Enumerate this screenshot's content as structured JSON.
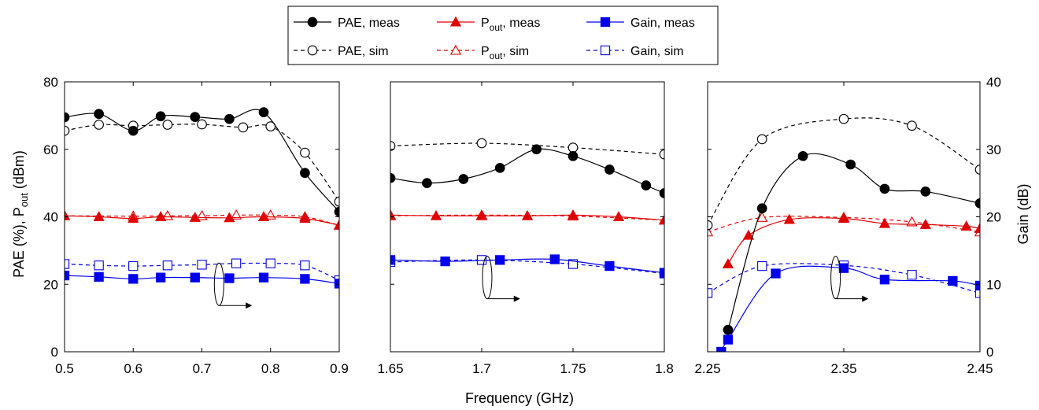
{
  "chart_data": {
    "type": "line",
    "xlabel": "Frequency (GHz)",
    "ylabel_left": {
      "main": "PAE (%), P",
      "sub": "out",
      "unit": " (dBm)"
    },
    "ylabel_right": "Gain (dB)",
    "ylim_left": [
      0,
      80
    ],
    "ylim_right": [
      0,
      40
    ],
    "yticks_left": [
      "0",
      "20",
      "40",
      "60",
      "80"
    ],
    "yticks_right": [
      "0",
      "10",
      "20",
      "30",
      "40"
    ],
    "grid": false,
    "legend_position": "top-center",
    "legend": [
      {
        "label": "PAE, meas",
        "color": "#000000",
        "marker": "filled-circle",
        "dash": "solid"
      },
      {
        "label": "P",
        "sub": "out",
        "label_tail": ", meas",
        "color": "#e00000",
        "marker": "filled-triangle",
        "dash": "solid"
      },
      {
        "label": "Gain, meas",
        "color": "#0000ee",
        "marker": "filled-square",
        "dash": "solid"
      },
      {
        "label": "PAE, sim",
        "color": "#000000",
        "marker": "open-circle",
        "dash": "dashed"
      },
      {
        "label": "P",
        "sub": "out",
        "label_tail": ", sim",
        "color": "#e00000",
        "marker": "open-triangle",
        "dash": "dashed"
      },
      {
        "label": "Gain, sim",
        "color": "#0000ee",
        "marker": "open-square",
        "dash": "dashed"
      }
    ],
    "panels": [
      {
        "xlim": [
          0.5,
          0.9
        ],
        "xticks": [
          0.5,
          0.6,
          0.7,
          0.8,
          0.9
        ],
        "xtick_labels": [
          "0.5",
          "0.6",
          "0.7",
          "0.8",
          "0.9"
        ],
        "series": {
          "pae_meas": {
            "x": [
              0.5,
              0.55,
              0.6,
              0.64,
              0.69,
              0.74,
              0.79,
              0.85,
              0.9
            ],
            "y": [
              69.5,
              70.5,
              65.5,
              69.8,
              69.6,
              69,
              71,
              53,
              41.5
            ]
          },
          "pae_sim": {
            "x": [
              0.5,
              0.55,
              0.6,
              0.65,
              0.7,
              0.76,
              0.8,
              0.85,
              0.9
            ],
            "y": [
              65.5,
              67.3,
              67,
              67.3,
              67.4,
              66.5,
              66.8,
              59,
              44.5
            ]
          },
          "pout_meas": {
            "x": [
              0.5,
              0.55,
              0.6,
              0.64,
              0.69,
              0.74,
              0.79,
              0.85,
              0.9
            ],
            "y": [
              40.3,
              40,
              39.5,
              40,
              39.8,
              39.7,
              40,
              39.5,
              37.5
            ]
          },
          "pout_sim": {
            "x": [
              0.5,
              0.6,
              0.65,
              0.7,
              0.75,
              0.8,
              0.85,
              0.9
            ],
            "y": [
              40.3,
              40.2,
              40.3,
              40.3,
              40.5,
              40.5,
              40,
              37.5
            ]
          },
          "gain_meas": {
            "x": [
              0.5,
              0.55,
              0.6,
              0.64,
              0.69,
              0.74,
              0.79,
              0.85,
              0.9
            ],
            "y": [
              11.3,
              11.1,
              10.8,
              11,
              11,
              10.9,
              11,
              10.8,
              10.1
            ]
          },
          "gain_sim": {
            "x": [
              0.5,
              0.55,
              0.6,
              0.65,
              0.7,
              0.75,
              0.8,
              0.85,
              0.9
            ],
            "y": [
              13,
              12.8,
              12.7,
              12.8,
              12.9,
              13.1,
              13.1,
              12.8,
              10.6
            ]
          }
        },
        "annotation": {
          "x": 0.725,
          "y_left": 20,
          "dx": 0.04
        }
      },
      {
        "xlim": [
          1.65,
          1.8
        ],
        "xticks": [
          1.65,
          1.7,
          1.75,
          1.8
        ],
        "xtick_labels": [
          "1.65",
          "1.7",
          "1.75",
          "1.8"
        ],
        "series": {
          "pae_meas": {
            "x": [
              1.65,
              1.67,
              1.69,
              1.71,
              1.73,
              1.75,
              1.77,
              1.79,
              1.8
            ],
            "y": [
              51.5,
              50,
              51.2,
              54.5,
              60,
              58,
              54,
              49.3,
              47
            ]
          },
          "pae_sim": {
            "x": [
              1.65,
              1.7,
              1.75,
              1.8
            ],
            "y": [
              61,
              61.8,
              60.5,
              58.5
            ]
          },
          "pout_meas": {
            "x": [
              1.65,
              1.675,
              1.7,
              1.725,
              1.75,
              1.775,
              1.8
            ],
            "y": [
              40.5,
              40.3,
              40.3,
              40.3,
              40.5,
              40,
              39
            ]
          },
          "pout_sim": {
            "x": [
              1.65,
              1.7,
              1.75,
              1.8
            ],
            "y": [
              40.3,
              40.5,
              40.2,
              39
            ]
          },
          "gain_meas": {
            "x": [
              1.65,
              1.68,
              1.71,
              1.74,
              1.77,
              1.8
            ],
            "y": [
              13.6,
              13.4,
              13.6,
              13.7,
              12.7,
              11.7
            ]
          },
          "gain_sim": {
            "x": [
              1.65,
              1.7,
              1.75,
              1.8
            ],
            "y": [
              13.3,
              13.6,
              13,
              11.6
            ]
          }
        },
        "annotation": {
          "x": 1.703,
          "y_left": 22,
          "dx": 0.015
        }
      },
      {
        "xlim": [
          2.25,
          2.45
        ],
        "xticks": [
          2.25,
          2.35,
          2.45
        ],
        "xtick_labels": [
          "2.25",
          "2.35",
          "2.45"
        ],
        "series": {
          "pae_meas": {
            "x": [
              2.265,
              2.29,
              2.32,
              2.355,
              2.38,
              2.41,
              2.45
            ],
            "y": [
              6.5,
              42.5,
              58,
              55.5,
              48.3,
              47.5,
              44
            ]
          },
          "pae_sim": {
            "x": [
              2.25,
              2.29,
              2.35,
              2.4,
              2.45
            ],
            "y": [
              37.5,
              63,
              69,
              67,
              54
            ]
          },
          "pout_meas": {
            "x": [
              2.265,
              2.28,
              2.31,
              2.35,
              2.38,
              2.41,
              2.44,
              2.45
            ],
            "y": [
              26,
              34.5,
              39.2,
              39.5,
              38,
              37.7,
              37.2,
              36.5
            ]
          },
          "pout_sim": {
            "x": [
              2.25,
              2.29,
              2.35,
              2.4,
              2.45
            ],
            "y": [
              35.5,
              39.8,
              39.8,
              38.5,
              35.5
            ]
          },
          "gain_meas": {
            "x": [
              2.26,
              2.265,
              2.3,
              2.35,
              2.38,
              2.43,
              2.45
            ],
            "y": [
              0,
              1.8,
              11.6,
              12.4,
              10.7,
              10.5,
              9.8
            ]
          },
          "gain_sim": {
            "x": [
              2.25,
              2.29,
              2.35,
              2.4,
              2.45
            ],
            "y": [
              8.7,
              12.7,
              12.8,
              11.4,
              8.7
            ]
          }
        },
        "annotation": {
          "x": 2.344,
          "y_left": 22,
          "dx": 0.02
        }
      }
    ]
  }
}
